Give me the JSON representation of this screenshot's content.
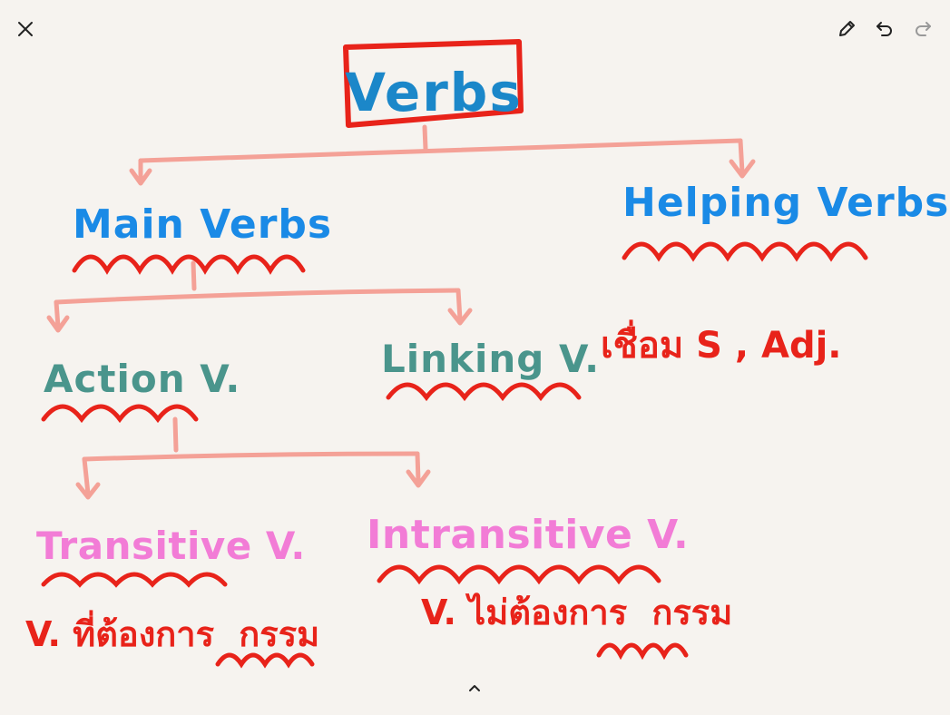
{
  "colors": {
    "root": "#1b87c9",
    "root_box": "#e8231a",
    "branch": "#1a8ae6",
    "sub": "#4a958c",
    "leaf": "#f27cd6",
    "note": "#e8231a",
    "connector": "#f4a197"
  },
  "toolbar": {
    "close_icon": "close-icon",
    "pen_icon": "pen-icon",
    "undo_icon": "undo-icon",
    "redo_icon": "redo-icon",
    "expand_icon": "chevron-up-icon"
  },
  "diagram": {
    "root": "Verbs",
    "main_verbs": "Main Verbs",
    "helping_verbs": "Helping Verbs",
    "action_v": "Action V.",
    "linking_v": "Linking V.",
    "linking_note": "เชื่อม S , Adj.",
    "transitive_v": "Transitive V.",
    "intransitive_v": "Intransitive V.",
    "transitive_note_prefix": "V. ที่ต้องการ",
    "transitive_note_word": "กรรม",
    "intransitive_note_prefix": "V. ไม่ต้องการ",
    "intransitive_note_word": "กรรม"
  }
}
